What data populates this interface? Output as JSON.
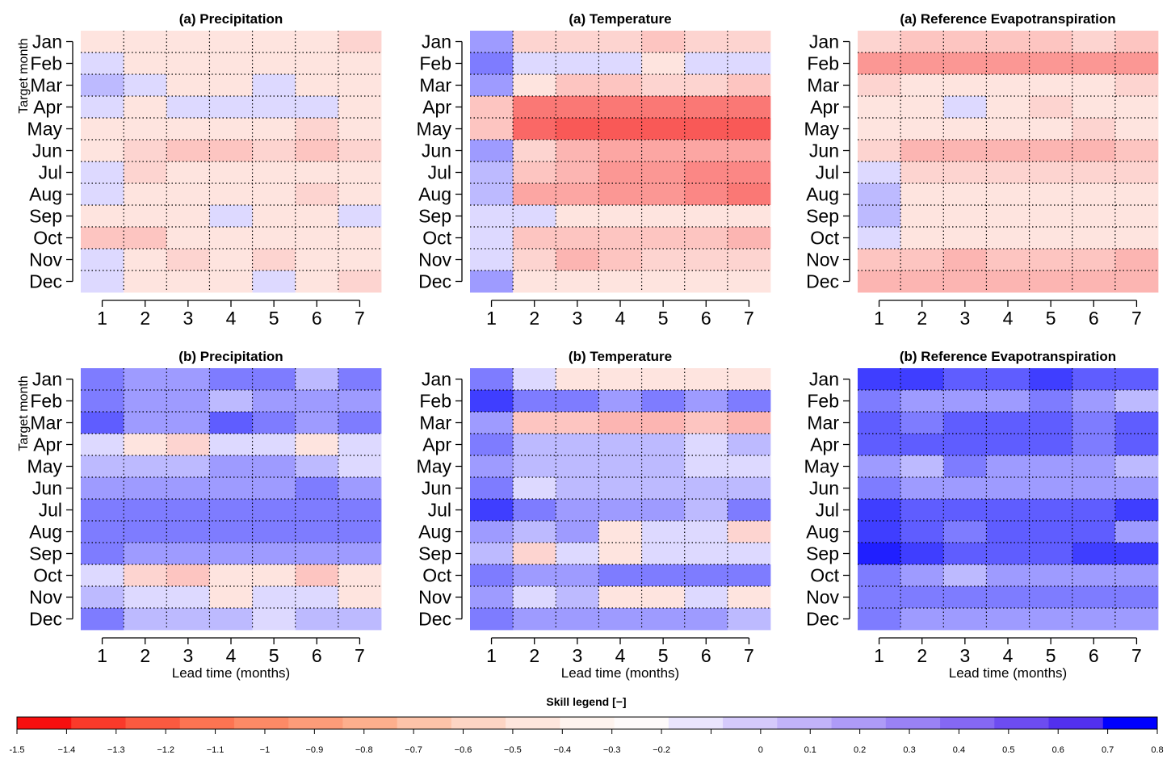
{
  "chart_data": {
    "type": "heatmap",
    "months": [
      "Jan",
      "Feb",
      "Mar",
      "Apr",
      "May",
      "Jun",
      "Jul",
      "Aug",
      "Sep",
      "Oct",
      "Nov",
      "Dec"
    ],
    "lead_times": [
      "1",
      "2",
      "3",
      "4",
      "5",
      "6",
      "7"
    ],
    "row_axis_label": "Target month",
    "x_axis_label": "Lead time (months)",
    "grid": "dotted",
    "panels": [
      {
        "title": "(a) Precipitation",
        "values": [
          [
            -0.1,
            -0.1,
            -0.1,
            -0.1,
            -0.1,
            -0.1,
            -0.2
          ],
          [
            0.1,
            -0.1,
            -0.1,
            -0.1,
            -0.1,
            -0.1,
            -0.1
          ],
          [
            0.2,
            0.1,
            -0.1,
            -0.1,
            0.1,
            -0.1,
            -0.1
          ],
          [
            0.1,
            -0.1,
            0.1,
            0.1,
            0.1,
            0.1,
            -0.1
          ],
          [
            -0.1,
            -0.1,
            -0.1,
            -0.1,
            -0.1,
            -0.2,
            -0.1
          ],
          [
            -0.1,
            -0.2,
            -0.3,
            -0.3,
            -0.2,
            -0.3,
            -0.2
          ],
          [
            0.1,
            -0.2,
            -0.1,
            -0.1,
            -0.1,
            -0.1,
            -0.1
          ],
          [
            0.1,
            -0.1,
            -0.1,
            -0.1,
            -0.1,
            -0.2,
            -0.1
          ],
          [
            -0.1,
            -0.1,
            -0.1,
            0.1,
            -0.1,
            -0.1,
            0.1
          ],
          [
            -0.3,
            -0.3,
            -0.1,
            -0.1,
            -0.1,
            -0.1,
            -0.1
          ],
          [
            0.1,
            -0.1,
            -0.2,
            -0.1,
            -0.2,
            -0.1,
            -0.1
          ],
          [
            0.1,
            -0.1,
            -0.1,
            -0.1,
            0.1,
            -0.1,
            -0.2
          ]
        ]
      },
      {
        "title": "(a) Temperature",
        "values": [
          [
            0.3,
            -0.2,
            -0.2,
            -0.2,
            -0.3,
            -0.2,
            -0.2
          ],
          [
            0.4,
            0.1,
            0.1,
            0.1,
            -0.1,
            0.1,
            0.1
          ],
          [
            0.3,
            -0.1,
            -0.3,
            -0.3,
            -0.2,
            -0.2,
            -0.3
          ],
          [
            -0.3,
            -0.8,
            -0.8,
            -0.8,
            -0.8,
            -0.8,
            -0.8
          ],
          [
            -0.3,
            -0.9,
            -1.0,
            -1.0,
            -1.0,
            -1.0,
            -1.0
          ],
          [
            0.3,
            -0.2,
            -0.4,
            -0.5,
            -0.5,
            -0.5,
            -0.5
          ],
          [
            0.2,
            -0.3,
            -0.4,
            -0.6,
            -0.6,
            -0.7,
            -0.7
          ],
          [
            0.2,
            -0.5,
            -0.5,
            -0.6,
            -0.6,
            -0.7,
            -0.8
          ],
          [
            0.1,
            0.1,
            -0.1,
            -0.1,
            -0.1,
            -0.1,
            -0.1
          ],
          [
            0.1,
            -0.3,
            -0.3,
            -0.3,
            -0.3,
            -0.3,
            -0.4
          ],
          [
            0.1,
            -0.2,
            -0.4,
            -0.3,
            -0.2,
            -0.2,
            -0.2
          ],
          [
            0.3,
            -0.1,
            -0.1,
            -0.1,
            -0.1,
            -0.1,
            -0.1
          ]
        ]
      },
      {
        "title": "(a) Reference Evapotranspiration",
        "values": [
          [
            -0.2,
            -0.3,
            -0.3,
            -0.3,
            -0.3,
            -0.2,
            -0.3
          ],
          [
            -0.6,
            -0.6,
            -0.6,
            -0.6,
            -0.6,
            -0.6,
            -0.6
          ],
          [
            -0.2,
            -0.1,
            -0.1,
            -0.1,
            -0.1,
            -0.1,
            -0.2
          ],
          [
            -0.1,
            -0.1,
            0.1,
            -0.1,
            -0.2,
            -0.1,
            -0.1
          ],
          [
            -0.1,
            -0.1,
            -0.1,
            -0.1,
            -0.1,
            -0.2,
            -0.1
          ],
          [
            -0.2,
            -0.4,
            -0.4,
            -0.4,
            -0.4,
            -0.4,
            -0.3
          ],
          [
            0.1,
            -0.2,
            -0.2,
            -0.2,
            -0.2,
            -0.2,
            -0.2
          ],
          [
            0.2,
            -0.1,
            -0.1,
            -0.1,
            -0.1,
            -0.1,
            -0.1
          ],
          [
            0.2,
            -0.1,
            -0.1,
            -0.1,
            -0.1,
            -0.1,
            -0.1
          ],
          [
            0.1,
            -0.1,
            -0.1,
            -0.1,
            -0.1,
            -0.1,
            -0.1
          ],
          [
            -0.3,
            -0.3,
            -0.4,
            -0.3,
            -0.3,
            -0.3,
            -0.4
          ],
          [
            -0.4,
            -0.4,
            -0.4,
            -0.4,
            -0.4,
            -0.4,
            -0.4
          ]
        ]
      },
      {
        "title": "(b) Precipitation",
        "values": [
          [
            0.4,
            0.3,
            0.3,
            0.4,
            0.4,
            0.2,
            0.4
          ],
          [
            0.4,
            0.3,
            0.3,
            0.2,
            0.3,
            0.3,
            0.3
          ],
          [
            0.5,
            0.3,
            0.3,
            0.5,
            0.4,
            0.3,
            0.4
          ],
          [
            0.1,
            -0.1,
            -0.2,
            0.1,
            0.1,
            -0.1,
            0.1
          ],
          [
            0.2,
            0.2,
            0.2,
            0.3,
            0.3,
            0.2,
            0.1
          ],
          [
            0.3,
            0.3,
            0.3,
            0.3,
            0.3,
            0.4,
            0.3
          ],
          [
            0.4,
            0.4,
            0.4,
            0.4,
            0.4,
            0.4,
            0.4
          ],
          [
            0.4,
            0.4,
            0.4,
            0.4,
            0.4,
            0.4,
            0.4
          ],
          [
            0.4,
            0.3,
            0.3,
            0.3,
            0.3,
            0.3,
            0.3
          ],
          [
            0.1,
            -0.2,
            -0.3,
            -0.1,
            -0.1,
            -0.3,
            -0.1
          ],
          [
            0.2,
            0.1,
            0.1,
            -0.1,
            0.1,
            0.1,
            -0.1
          ],
          [
            0.4,
            0.2,
            0.2,
            0.2,
            0.1,
            0.2,
            0.2
          ]
        ]
      },
      {
        "title": "(b) Temperature",
        "values": [
          [
            0.4,
            0.1,
            -0.1,
            -0.1,
            -0.1,
            -0.1,
            -0.1
          ],
          [
            0.6,
            0.4,
            0.4,
            0.3,
            0.4,
            0.3,
            0.4
          ],
          [
            0.3,
            -0.3,
            -0.3,
            -0.4,
            -0.4,
            -0.3,
            -0.4
          ],
          [
            0.4,
            0.2,
            0.2,
            0.2,
            0.2,
            0.1,
            0.2
          ],
          [
            0.3,
            0.2,
            0.2,
            0.2,
            0.2,
            0.1,
            0.1
          ],
          [
            0.4,
            0.1,
            0.2,
            0.2,
            0.2,
            0.2,
            0.2
          ],
          [
            0.6,
            0.4,
            0.3,
            0.3,
            0.3,
            0.2,
            0.4
          ],
          [
            0.3,
            0.2,
            0.3,
            -0.1,
            0.1,
            0.1,
            -0.2
          ],
          [
            0.2,
            -0.2,
            0.1,
            -0.1,
            0.1,
            0.1,
            0.1
          ],
          [
            0.4,
            0.3,
            0.3,
            0.4,
            0.4,
            0.4,
            0.4
          ],
          [
            0.3,
            0.1,
            0.2,
            -0.1,
            -0.1,
            0.1,
            -0.1
          ],
          [
            0.4,
            0.3,
            0.3,
            0.3,
            0.3,
            0.3,
            0.2
          ]
        ]
      },
      {
        "title": "(b) Reference Evapotranspiration",
        "values": [
          [
            0.6,
            0.6,
            0.5,
            0.5,
            0.6,
            0.5,
            0.5
          ],
          [
            0.4,
            0.3,
            0.3,
            0.3,
            0.4,
            0.3,
            0.2
          ],
          [
            0.5,
            0.4,
            0.5,
            0.5,
            0.5,
            0.4,
            0.5
          ],
          [
            0.5,
            0.5,
            0.5,
            0.5,
            0.5,
            0.4,
            0.5
          ],
          [
            0.3,
            0.2,
            0.4,
            0.3,
            0.3,
            0.3,
            0.2
          ],
          [
            0.4,
            0.3,
            0.3,
            0.3,
            0.3,
            0.3,
            0.3
          ],
          [
            0.6,
            0.5,
            0.5,
            0.5,
            0.5,
            0.5,
            0.6
          ],
          [
            0.6,
            0.5,
            0.4,
            0.5,
            0.5,
            0.5,
            0.3
          ],
          [
            0.7,
            0.6,
            0.5,
            0.5,
            0.5,
            0.6,
            0.6
          ],
          [
            0.4,
            0.3,
            0.2,
            0.3,
            0.3,
            0.3,
            0.3
          ],
          [
            0.4,
            0.4,
            0.4,
            0.4,
            0.4,
            0.4,
            0.4
          ],
          [
            0.4,
            0.3,
            0.3,
            0.3,
            0.3,
            0.3,
            0.3
          ]
        ]
      }
    ],
    "legend": {
      "title": "Skill legend [−]",
      "colors": [
        "#f70f0f",
        "#fa3a2a",
        "#fb5a40",
        "#fc7452",
        "#fc8a66",
        "#fc9c79",
        "#fdaf8d",
        "#fdc3a9",
        "#fdd5c4",
        "#fee6dd",
        "#fef3ee",
        "#fefafa",
        "#eae5fd",
        "#d5cafb",
        "#c2b3f9",
        "#ae9bf7",
        "#9a82f5",
        "#8568f3",
        "#6d4cf1",
        "#5230ee",
        "#0000ff"
      ],
      "tick_labels": [
        "-1.5",
        "−1.4",
        "−1.3",
        "−1.2",
        "−1.1",
        "−1",
        "−0.9",
        "−0.8",
        "−0.7",
        "−0.6",
        "−0.5",
        "−0.4",
        "−0.3",
        "−0.2",
        "",
        "0",
        "0.1",
        "0.2",
        "0.3",
        "0.4",
        "0.5",
        "0.6",
        "0.7",
        "0.8"
      ]
    }
  }
}
